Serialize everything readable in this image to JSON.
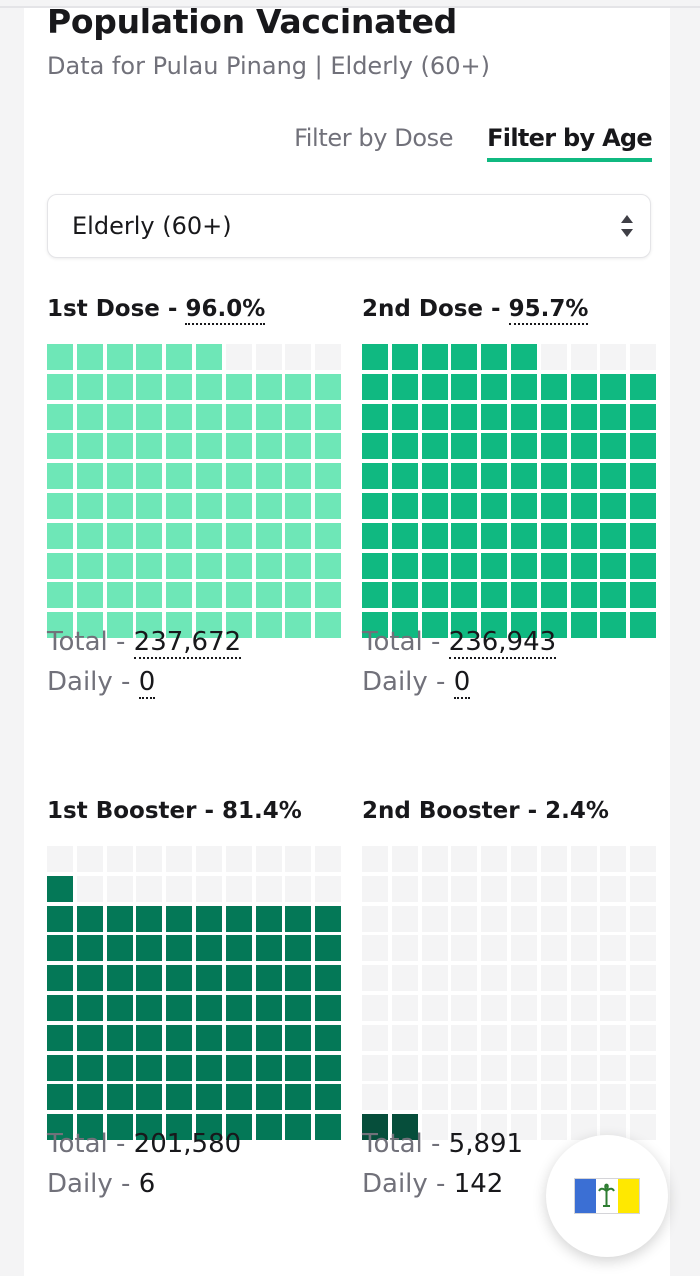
{
  "header": {
    "title": "Population Vaccinated",
    "subtitle": "Data for Pulau Pinang | Elderly (60+)"
  },
  "tabs": [
    {
      "label": "Filter by Dose",
      "active": false
    },
    {
      "label": "Filter by Age",
      "active": true
    }
  ],
  "age_select": {
    "value": "Elderly (60+)"
  },
  "panels": [
    {
      "label": "1st Dose",
      "percent": 96.0,
      "percent_text": "96.0%",
      "total_label": "Total",
      "total": "237,672",
      "daily_label": "Daily",
      "daily": "0",
      "color": "#6ee7b7",
      "filled_color": "#6ee7b7"
    },
    {
      "label": "2nd Dose",
      "percent": 95.7,
      "percent_text": "95.7%",
      "total_label": "Total",
      "total": "236,943",
      "daily_label": "Daily",
      "daily": "0",
      "color": "#10b981"
    },
    {
      "label": "1st Booster",
      "percent": 81.4,
      "percent_text": "81.4%",
      "total_label": "Total",
      "total": "201,580",
      "daily_label": "Daily",
      "daily": "6",
      "color": "#047857"
    },
    {
      "label": "2nd Booster",
      "percent": 2.4,
      "percent_text": "2.4%",
      "total_label": "Total",
      "total": "5,891",
      "daily_label": "Daily",
      "daily": "142",
      "color": "#064e3b"
    }
  ],
  "colors": {
    "accent": "#10b981",
    "empty_cell": "#f4f4f5"
  },
  "fab": {
    "icon": "penang-flag-icon",
    "flag_colors": [
      "#3b6fd4",
      "#ffffff",
      "#ffe800"
    ]
  }
}
